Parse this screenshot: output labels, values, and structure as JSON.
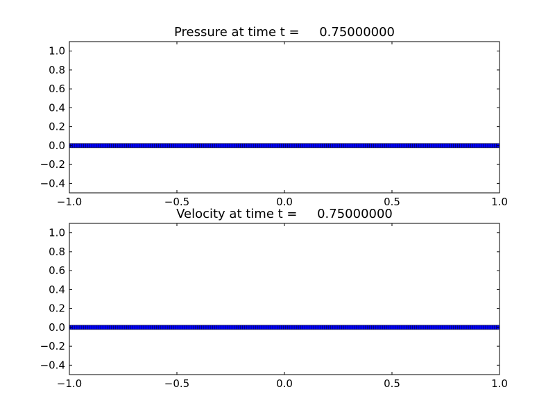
{
  "chart_data": [
    {
      "type": "scatter",
      "title": "Pressure at time t =     0.75000000",
      "xlabel": "",
      "ylabel": "",
      "xlim": [
        -1.0,
        1.0
      ],
      "ylim": [
        -0.5,
        1.1
      ],
      "xticks": [
        -1.0,
        -0.5,
        0.0,
        0.5,
        1.0
      ],
      "xtick_labels": [
        "−1.0",
        "−0.5",
        "0.0",
        "0.5",
        "1.0"
      ],
      "yticks": [
        -0.4,
        -0.2,
        0.0,
        0.2,
        0.4,
        0.6,
        0.8,
        1.0
      ],
      "ytick_labels": [
        "−0.4",
        "−0.2",
        "0.0",
        "0.2",
        "0.4",
        "0.6",
        "0.8",
        "1.0"
      ],
      "marker": "square",
      "marker_color": "#0000ff",
      "marker_edge": "#000000",
      "grid": false,
      "series": [
        {
          "x_range": [
            -1.0,
            1.0
          ],
          "n_points": 200,
          "y_value": 0.0
        }
      ]
    },
    {
      "type": "scatter",
      "title": "Velocity at time t =     0.75000000",
      "xlabel": "",
      "ylabel": "",
      "xlim": [
        -1.0,
        1.0
      ],
      "ylim": [
        -0.5,
        1.1
      ],
      "xticks": [
        -1.0,
        -0.5,
        0.0,
        0.5,
        1.0
      ],
      "xtick_labels": [
        "−1.0",
        "−0.5",
        "0.0",
        "0.5",
        "1.0"
      ],
      "yticks": [
        -0.4,
        -0.2,
        0.0,
        0.2,
        0.4,
        0.6,
        0.8,
        1.0
      ],
      "ytick_labels": [
        "−0.4",
        "−0.2",
        "0.0",
        "0.2",
        "0.4",
        "0.6",
        "0.8",
        "1.0"
      ],
      "marker": "square",
      "marker_color": "#0000ff",
      "marker_edge": "#000000",
      "grid": false,
      "series": [
        {
          "x_range": [
            -1.0,
            1.0
          ],
          "n_points": 200,
          "y_value": 0.0
        }
      ]
    }
  ]
}
